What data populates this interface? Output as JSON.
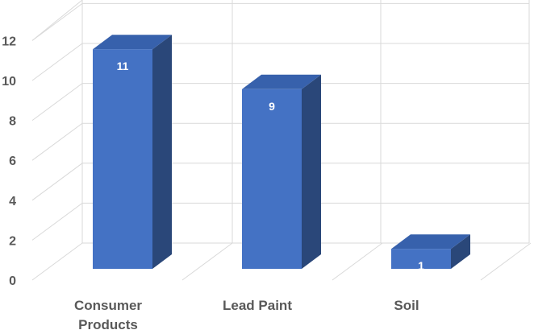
{
  "chart_data": {
    "type": "bar",
    "style": "3d-column",
    "categories": [
      "Consumer Products",
      "Lead Paint",
      "Soil"
    ],
    "category_label_lines": [
      [
        "Consumer",
        "Products"
      ],
      [
        "Lead Paint"
      ],
      [
        "Soil"
      ]
    ],
    "values": [
      11,
      9,
      1
    ],
    "data_labels": [
      "11",
      "9",
      "1"
    ],
    "y_ticks": [
      "0",
      "2",
      "4",
      "6",
      "8",
      "10",
      "12"
    ],
    "ylim": [
      0,
      12
    ],
    "grid": true,
    "legend": "none",
    "title": "",
    "xlabel": "",
    "ylabel": ""
  },
  "colors": {
    "bar_front": "#4472c4",
    "bar_side": "#2a4779",
    "bar_top": "#3761ac",
    "grid": "#d9d9d9",
    "axis_text": "#595959",
    "data_label": "#ffffff"
  }
}
